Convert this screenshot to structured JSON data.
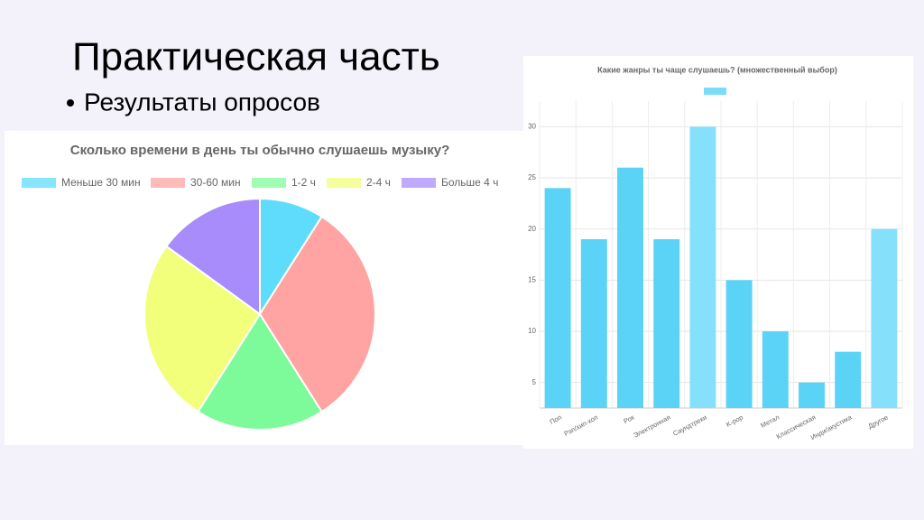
{
  "slide": {
    "title": "Практическая часть",
    "bullet": "Результаты опросов"
  },
  "chart_data": [
    {
      "type": "pie",
      "title": "Сколько времени в день ты обычно слушаешь музыку?",
      "categories": [
        "Меньше 30 мин",
        "30-60 мин",
        "1-2 ч",
        "2-4 ч",
        "Больше 4 ч"
      ],
      "values": [
        9,
        32,
        18,
        26,
        15
      ],
      "colors": [
        "#5fdcfc",
        "#ffa3a3",
        "#7dfb9a",
        "#f2ff7a",
        "#a88cfb"
      ],
      "legend": "top"
    },
    {
      "type": "bar",
      "title": "Какие жанры ты чаще слушаешь? (множественный выбор)",
      "categories": [
        "Поп",
        "Рэп/хип-хоп",
        "Рок",
        "Электронная",
        "Саундтреки",
        "K-pop",
        "Метал",
        "Классическая",
        "Инди/акустика",
        "Другое"
      ],
      "values": [
        24,
        19,
        26,
        19,
        30,
        15,
        10,
        5,
        8,
        20
      ],
      "colors": [
        "#5ad3f7",
        "#5ad3f7",
        "#5ad3f7",
        "#5ad3f7",
        "#85e1fb",
        "#5ad3f7",
        "#5ad3f7",
        "#5ad3f7",
        "#5ad3f7",
        "#85e1fb"
      ],
      "ylim": [
        2.5,
        32.5
      ],
      "yticks": [
        5,
        10,
        15,
        20,
        25,
        30
      ],
      "grid": true,
      "legend": "top"
    }
  ]
}
